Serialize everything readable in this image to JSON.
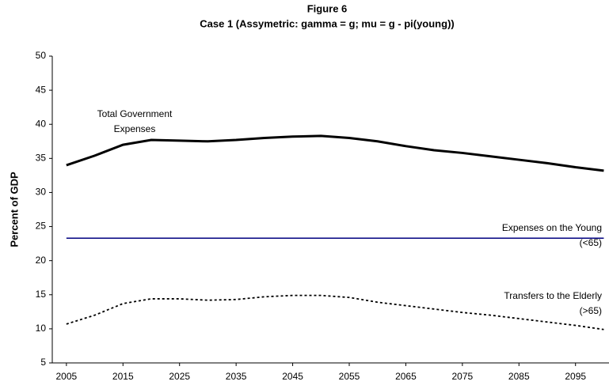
{
  "chart_data": {
    "type": "line",
    "title": "Figure 6",
    "subtitle": "Case 1 (Assymetric: gamma = g; mu = g - pi(young))",
    "y_label": "Percent of GDP",
    "x": [
      2005,
      2010,
      2015,
      2020,
      2025,
      2030,
      2035,
      2040,
      2045,
      2050,
      2055,
      2060,
      2065,
      2070,
      2075,
      2080,
      2085,
      2090,
      2095,
      2100
    ],
    "series": [
      {
        "name": "Total Government Expenses",
        "color": "#000000",
        "style": "solid",
        "width": 3,
        "values": [
          34,
          35.4,
          37,
          37.7,
          37.6,
          37.5,
          37.7,
          38,
          38.2,
          38.3,
          38,
          37.5,
          36.8,
          36.2,
          35.8,
          35.3,
          34.8,
          34.3,
          33.7,
          33.2
        ]
      },
      {
        "name": "Expenses on the Young (<65)",
        "color": "#000080",
        "style": "solid",
        "width": 1.5,
        "values": [
          23.3,
          23.3,
          23.3,
          23.3,
          23.3,
          23.3,
          23.3,
          23.3,
          23.3,
          23.3,
          23.3,
          23.3,
          23.3,
          23.3,
          23.3,
          23.3,
          23.3,
          23.3,
          23.3,
          23.3
        ]
      },
      {
        "name": "Transfers to the Elderly (>65)",
        "color": "#000000",
        "style": "dotted",
        "width": 1.8,
        "values": [
          10.7,
          12,
          13.7,
          14.4,
          14.4,
          14.2,
          14.3,
          14.7,
          14.9,
          14.9,
          14.6,
          13.9,
          13.4,
          12.9,
          12.4,
          12,
          11.5,
          11,
          10.5,
          9.9
        ]
      }
    ],
    "xlim": [
      2002.5,
      2100.5
    ],
    "xticks": [
      2005,
      2015,
      2025,
      2035,
      2045,
      2055,
      2065,
      2075,
      2085,
      2095
    ],
    "ylim": [
      5,
      50
    ],
    "yticks": [
      5,
      10,
      15,
      20,
      25,
      30,
      35,
      40,
      45,
      50
    ],
    "grid": false
  }
}
